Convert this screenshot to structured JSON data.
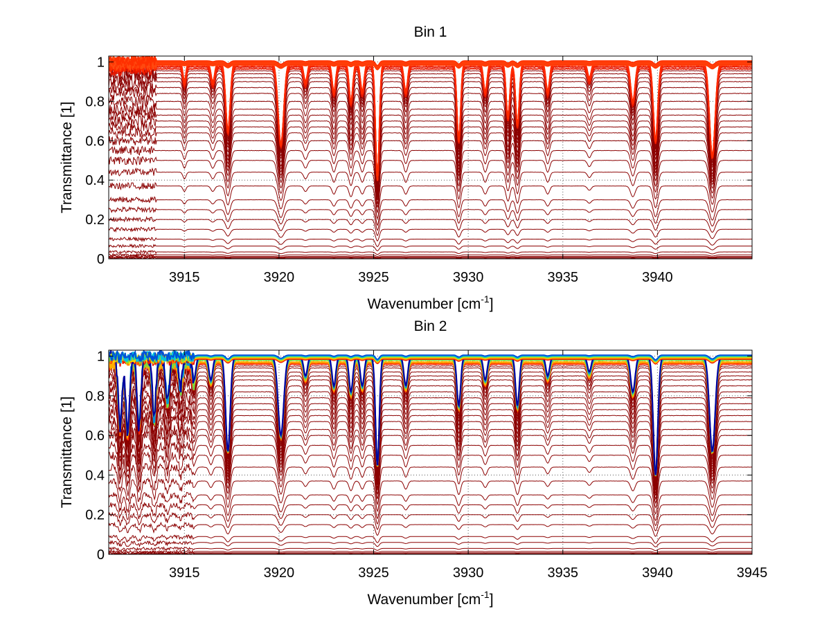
{
  "chart_data": [
    {
      "type": "line",
      "title": "Bin 1",
      "xlabel": "Wavenumber [cm",
      "xlabel_sup": "-1",
      "xlabel_suffix": "]",
      "ylabel": "Transmittance [1]",
      "xlim": [
        3911,
        3945
      ],
      "ylim": [
        0,
        1.03
      ],
      "xticks": [
        3915,
        3920,
        3925,
        3930,
        3935,
        3940
      ],
      "xtick_labels": [
        "3915",
        "3920",
        "3925",
        "3930",
        "3935",
        "3940"
      ],
      "yticks": [
        0,
        0.2,
        0.4,
        0.6,
        0.8,
        1
      ],
      "ytick_labels": [
        "0",
        "0.2",
        "0.4",
        "0.6",
        "0.8",
        "1"
      ],
      "grid": true,
      "line_color": "#8b0000",
      "top_color": "#ff2a00",
      "rainbow_top": false,
      "noise_end": 3913.5,
      "baselines": [
        0.0,
        0.004,
        0.008,
        0.012,
        0.02,
        0.035,
        0.065,
        0.1,
        0.15,
        0.2,
        0.25,
        0.3,
        0.37,
        0.44,
        0.5,
        0.55,
        0.6,
        0.64,
        0.67,
        0.7,
        0.73,
        0.76,
        0.8,
        0.84,
        0.87,
        0.9,
        0.92,
        0.94,
        0.955,
        0.965,
        0.975,
        0.983,
        0.99,
        0.995,
        0.998,
        1.0
      ],
      "absorption_lines": [
        {
          "x": 3915.0,
          "depth": 0.1,
          "width": 0.08
        },
        {
          "x": 3916.5,
          "depth": 0.1,
          "width": 0.1
        },
        {
          "x": 3917.3,
          "depth": 0.35,
          "width": 0.12
        },
        {
          "x": 3920.1,
          "depth": 0.42,
          "width": 0.15
        },
        {
          "x": 3921.4,
          "depth": 0.1,
          "width": 0.1
        },
        {
          "x": 3922.9,
          "depth": 0.15,
          "width": 0.1
        },
        {
          "x": 3923.8,
          "depth": 0.2,
          "width": 0.1
        },
        {
          "x": 3924.4,
          "depth": 0.15,
          "width": 0.1
        },
        {
          "x": 3925.2,
          "depth": 0.6,
          "width": 0.1
        },
        {
          "x": 3926.7,
          "depth": 0.15,
          "width": 0.1
        },
        {
          "x": 3929.5,
          "depth": 0.4,
          "width": 0.1
        },
        {
          "x": 3930.9,
          "depth": 0.15,
          "width": 0.1
        },
        {
          "x": 3932.1,
          "depth": 0.28,
          "width": 0.1
        },
        {
          "x": 3932.6,
          "depth": 0.32,
          "width": 0.1
        },
        {
          "x": 3934.2,
          "depth": 0.15,
          "width": 0.1
        },
        {
          "x": 3936.4,
          "depth": 0.08,
          "width": 0.1
        },
        {
          "x": 3938.7,
          "depth": 0.2,
          "width": 0.12
        },
        {
          "x": 3939.9,
          "depth": 0.4,
          "width": 0.12
        },
        {
          "x": 3942.9,
          "depth": 0.48,
          "width": 0.15
        }
      ]
    },
    {
      "type": "line",
      "title": "Bin 2",
      "xlabel": "Wavenumber [cm",
      "xlabel_sup": "-1",
      "xlabel_suffix": "]",
      "ylabel": "Transmittance [1]",
      "xlim": [
        3911,
        3945
      ],
      "ylim": [
        0,
        1.03
      ],
      "xticks": [
        3915,
        3920,
        3925,
        3930,
        3935,
        3940,
        3945
      ],
      "xtick_labels": [
        "3915",
        "3920",
        "3925",
        "3930",
        "3935",
        "3940",
        "3945"
      ],
      "yticks": [
        0,
        0.2,
        0.4,
        0.6,
        0.8,
        1
      ],
      "ytick_labels": [
        "0",
        "0.2",
        "0.4",
        "0.6",
        "0.8",
        "1"
      ],
      "grid": true,
      "line_color": "#8b0000",
      "top_color": "#ff2a00",
      "rainbow_top": true,
      "noise_end": 3915.5,
      "baselines": [
        0.0,
        0.004,
        0.008,
        0.015,
        0.03,
        0.06,
        0.09,
        0.15,
        0.2,
        0.25,
        0.3,
        0.37,
        0.44,
        0.5,
        0.55,
        0.6,
        0.63,
        0.67,
        0.7,
        0.73,
        0.76,
        0.79,
        0.82,
        0.85,
        0.88,
        0.9,
        0.92,
        0.94,
        0.95,
        0.96,
        0.965,
        0.97,
        0.98,
        0.99,
        1.0
      ],
      "absorption_lines": [
        {
          "x": 3911.6,
          "depth": 0.35,
          "width": 0.1
        },
        {
          "x": 3912.0,
          "depth": 0.38,
          "width": 0.1
        },
        {
          "x": 3912.6,
          "depth": 0.35,
          "width": 0.1
        },
        {
          "x": 3913.4,
          "depth": 0.3,
          "width": 0.1
        },
        {
          "x": 3914.1,
          "depth": 0.22,
          "width": 0.1
        },
        {
          "x": 3914.8,
          "depth": 0.15,
          "width": 0.1
        },
        {
          "x": 3915.5,
          "depth": 0.12,
          "width": 0.1
        },
        {
          "x": 3916.4,
          "depth": 0.12,
          "width": 0.1
        },
        {
          "x": 3917.3,
          "depth": 0.48,
          "width": 0.12
        },
        {
          "x": 3920.1,
          "depth": 0.4,
          "width": 0.15
        },
        {
          "x": 3921.4,
          "depth": 0.1,
          "width": 0.1
        },
        {
          "x": 3922.9,
          "depth": 0.15,
          "width": 0.1
        },
        {
          "x": 3923.8,
          "depth": 0.18,
          "width": 0.1
        },
        {
          "x": 3924.4,
          "depth": 0.15,
          "width": 0.1
        },
        {
          "x": 3925.2,
          "depth": 0.55,
          "width": 0.1
        },
        {
          "x": 3926.7,
          "depth": 0.15,
          "width": 0.1
        },
        {
          "x": 3929.5,
          "depth": 0.25,
          "width": 0.1
        },
        {
          "x": 3930.9,
          "depth": 0.12,
          "width": 0.1
        },
        {
          "x": 3932.6,
          "depth": 0.25,
          "width": 0.1
        },
        {
          "x": 3934.2,
          "depth": 0.1,
          "width": 0.1
        },
        {
          "x": 3936.4,
          "depth": 0.08,
          "width": 0.1
        },
        {
          "x": 3938.7,
          "depth": 0.18,
          "width": 0.12
        },
        {
          "x": 3939.9,
          "depth": 0.6,
          "width": 0.12
        },
        {
          "x": 3942.9,
          "depth": 0.48,
          "width": 0.15
        }
      ]
    }
  ]
}
